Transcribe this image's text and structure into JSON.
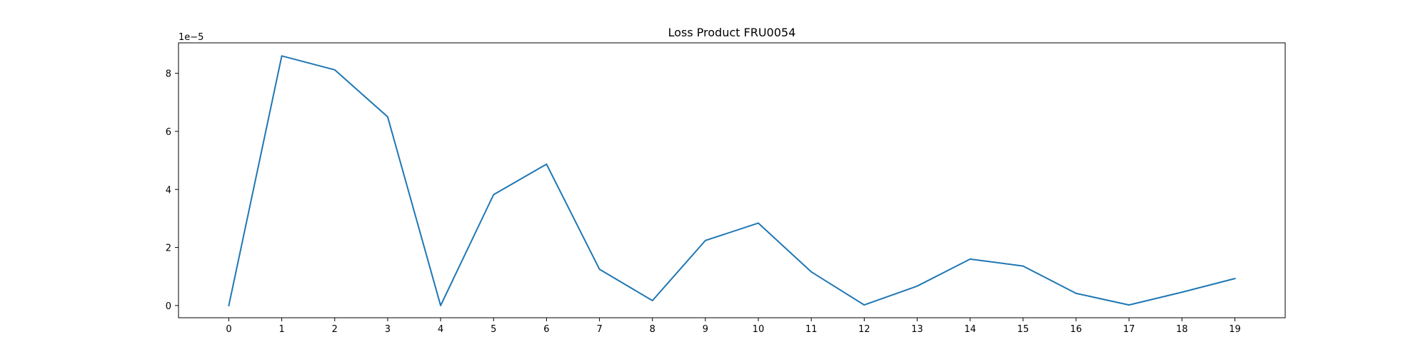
{
  "chart_data": {
    "type": "line",
    "title": "Loss Product FRU0054",
    "xlabel": "",
    "ylabel": "",
    "y_offset_label": "1e−5",
    "x": [
      0,
      1,
      2,
      3,
      4,
      5,
      6,
      7,
      8,
      9,
      10,
      11,
      12,
      13,
      14,
      15,
      16,
      17,
      18,
      19
    ],
    "y_ticks": [
      0,
      2,
      4,
      6,
      8
    ],
    "xlim": [
      -0.95,
      19.95
    ],
    "ylim": [
      -0.42,
      9.05
    ],
    "grid": false,
    "series": [
      {
        "color": "#1f77b4",
        "values": [
          0.0,
          8.6,
          8.12,
          6.5,
          0.0,
          3.82,
          4.87,
          1.25,
          0.17,
          2.24,
          2.84,
          1.16,
          0.02,
          0.67,
          1.6,
          1.36,
          0.42,
          0.02,
          0.46,
          0.93
        ]
      }
    ]
  }
}
